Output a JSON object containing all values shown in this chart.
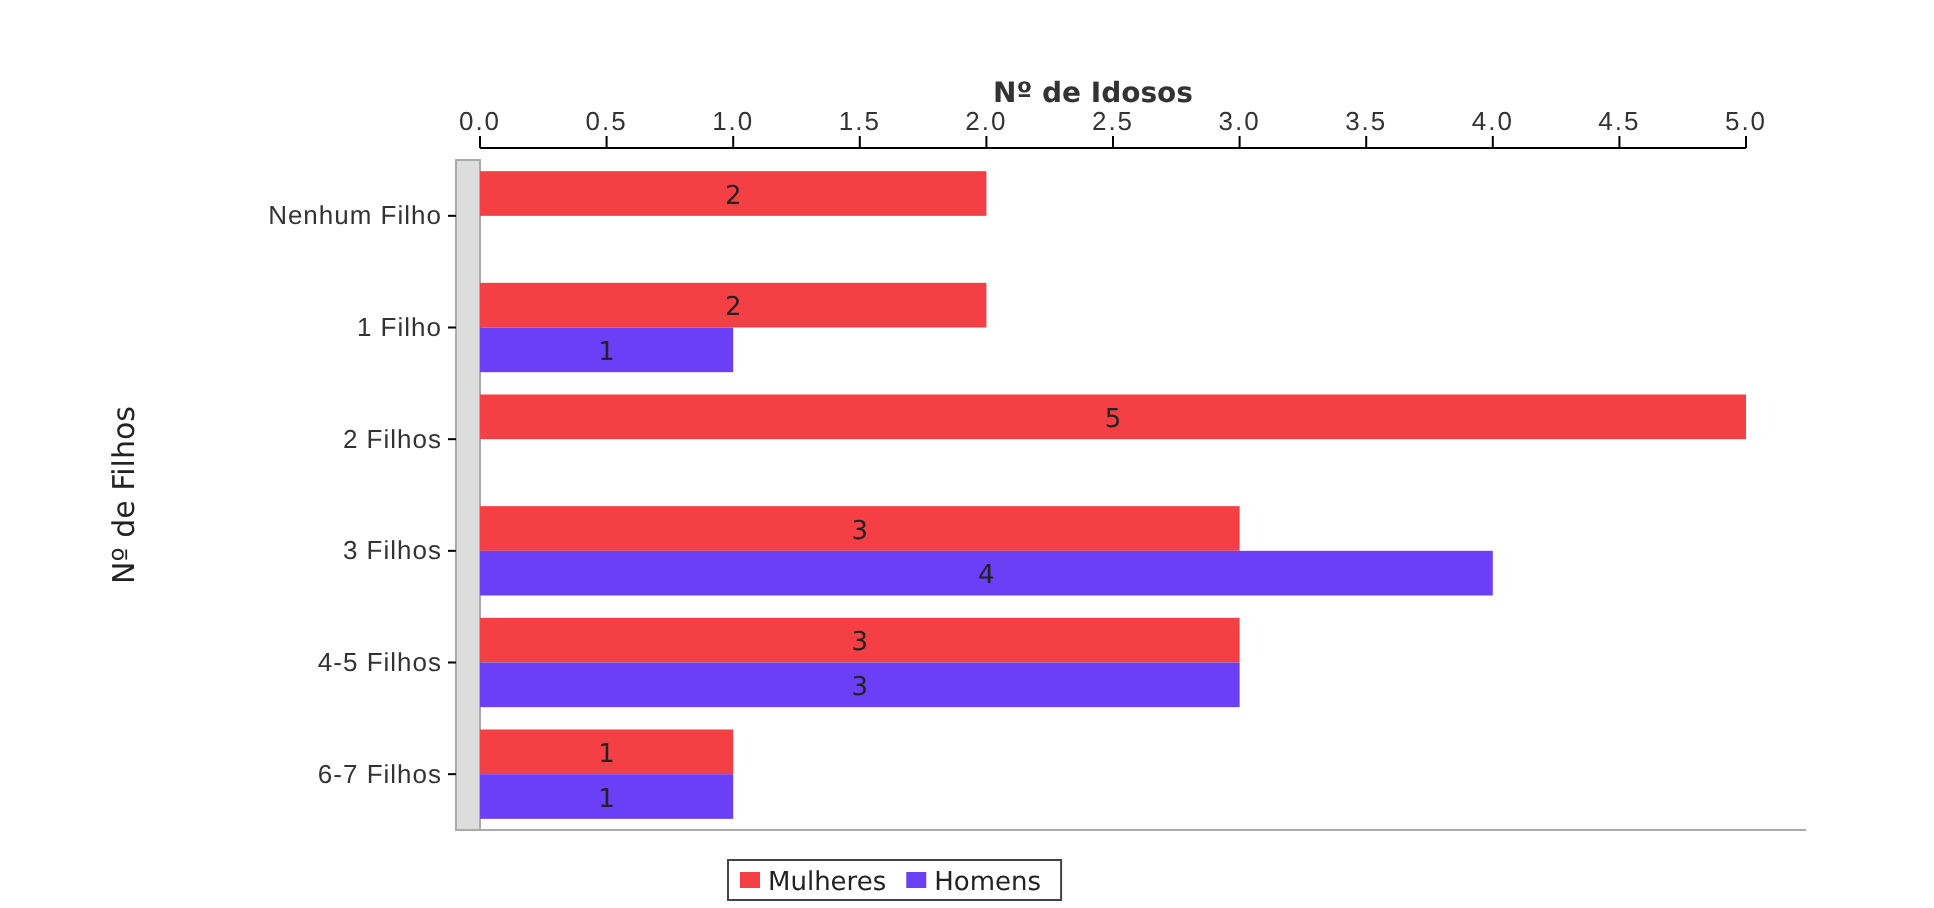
{
  "chart_data": {
    "type": "bar",
    "orientation": "horizontal",
    "xlabel": "Nº de Idosos",
    "ylabel": "Nº de Filhos",
    "categories": [
      "Nenhum Filho",
      "1 Filho",
      "2 Filhos",
      "3 Filhos",
      "4-5 Filhos",
      "6-7 Filhos"
    ],
    "series": [
      {
        "name": "Mulheres",
        "color": "#f44044",
        "values": [
          2,
          2,
          5,
          3,
          3,
          1
        ]
      },
      {
        "name": "Homens",
        "color": "#6a3ff5",
        "values": [
          null,
          1,
          null,
          4,
          3,
          1
        ]
      }
    ],
    "xlim": [
      0,
      5
    ],
    "xticks": [
      {
        "value": 0,
        "label": "0.0"
      },
      {
        "value": 0.5,
        "label": "0.5"
      },
      {
        "value": 1,
        "label": "1.0"
      },
      {
        "value": 1.5,
        "label": "1.5"
      },
      {
        "value": 2,
        "label": "2.0"
      },
      {
        "value": 2.5,
        "label": "2.5"
      },
      {
        "value": 3,
        "label": "3.0"
      },
      {
        "value": 3.5,
        "label": "3.5"
      },
      {
        "value": 4,
        "label": "4.0"
      },
      {
        "value": 4.5,
        "label": "4.5"
      },
      {
        "value": 5,
        "label": "5.0"
      }
    ],
    "data_labels": true,
    "legend": "bottom",
    "grid": false
  }
}
